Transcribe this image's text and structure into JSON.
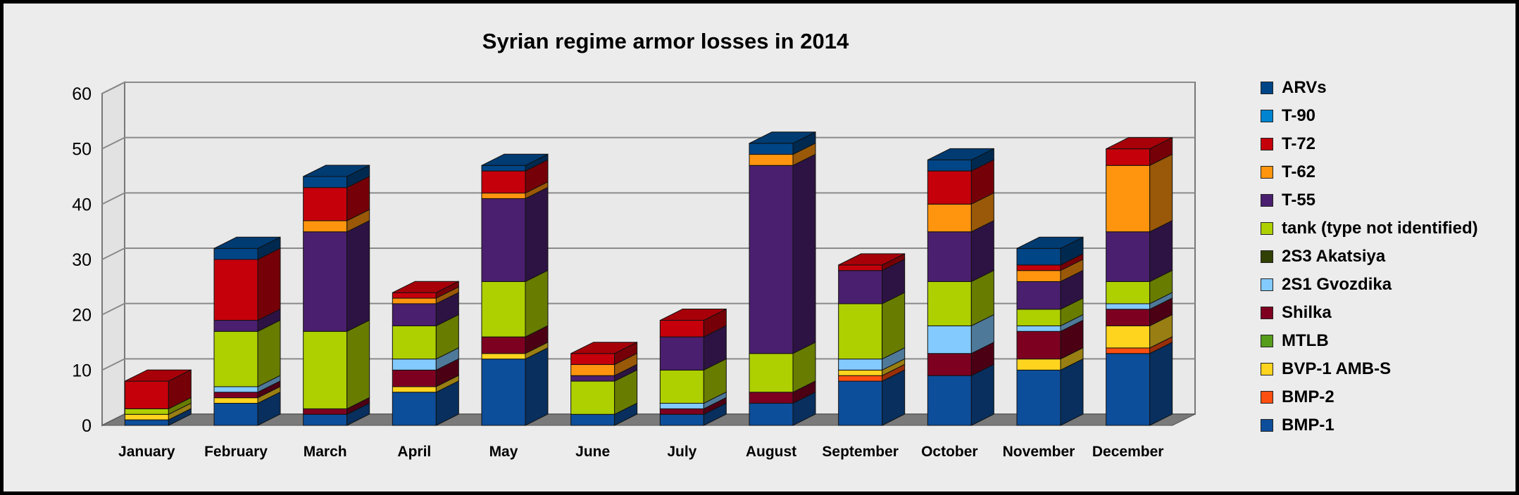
{
  "chart_data": {
    "type": "bar",
    "stacked": true,
    "three_d": true,
    "title": "Syrian regime armor losses in 2014",
    "xlabel": "",
    "ylabel": "",
    "ylim": [
      0,
      60
    ],
    "yticks": [
      "0",
      "10",
      "20",
      "30",
      "40",
      "50",
      "60"
    ],
    "grid": true,
    "legend_position": "right",
    "categories": [
      "January",
      "February",
      "March",
      "April",
      "May",
      "June",
      "July",
      "August",
      "September",
      "October",
      "November",
      "December"
    ],
    "series": [
      {
        "name": "BMP-1",
        "color": "#0d4e9b",
        "values": [
          1,
          4,
          2,
          6,
          12,
          2,
          2,
          4,
          8,
          9,
          10,
          13
        ]
      },
      {
        "name": "BMP-2",
        "color": "#ff4f10",
        "values": [
          0,
          0,
          0,
          0,
          0,
          0,
          0,
          0,
          1,
          0,
          0,
          1
        ]
      },
      {
        "name": "BVP-1 AMB-S",
        "color": "#ffd41f",
        "values": [
          1,
          1,
          0,
          1,
          1,
          0,
          0,
          0,
          1,
          0,
          2,
          4
        ]
      },
      {
        "name": "MTLB",
        "color": "#579d1c",
        "values": [
          0,
          0,
          0,
          0,
          0,
          0,
          0,
          0,
          0,
          0,
          0,
          0
        ]
      },
      {
        "name": "Shilka",
        "color": "#7e0021",
        "values": [
          0,
          1,
          1,
          3,
          3,
          0,
          1,
          2,
          0,
          4,
          5,
          3
        ]
      },
      {
        "name": "2S1 Gvozdika",
        "color": "#83caff",
        "values": [
          0,
          1,
          0,
          2,
          0,
          0,
          1,
          0,
          2,
          5,
          1,
          1
        ]
      },
      {
        "name": "2S3 Akatsiya",
        "color": "#314004",
        "values": [
          0,
          0,
          0,
          0,
          0,
          0,
          0,
          0,
          0,
          0,
          0,
          0
        ]
      },
      {
        "name": "tank (type not identified)",
        "color": "#aecf00",
        "values": [
          1,
          10,
          14,
          6,
          10,
          6,
          6,
          7,
          10,
          8,
          3,
          4
        ]
      },
      {
        "name": "T-55",
        "color": "#4b1f6f",
        "values": [
          0,
          2,
          18,
          4,
          15,
          1,
          6,
          34,
          6,
          9,
          5,
          9
        ]
      },
      {
        "name": "T-62",
        "color": "#ff950e",
        "values": [
          0,
          0,
          2,
          1,
          1,
          2,
          0,
          2,
          0,
          5,
          2,
          12
        ]
      },
      {
        "name": "T-72",
        "color": "#c5000b",
        "values": [
          5,
          11,
          6,
          1,
          4,
          2,
          3,
          0,
          1,
          6,
          1,
          3
        ]
      },
      {
        "name": "T-90",
        "color": "#0084d1",
        "values": [
          0,
          0,
          0,
          0,
          0,
          0,
          0,
          0,
          0,
          0,
          0,
          0
        ]
      },
      {
        "name": "ARVs",
        "color": "#004586",
        "values": [
          0,
          2,
          2,
          0,
          1,
          0,
          0,
          2,
          0,
          2,
          3,
          0
        ]
      }
    ],
    "legend_order": [
      "ARVs",
      "T-90",
      "T-72",
      "T-62",
      "T-55",
      "tank (type not identified)",
      "2S3 Akatsiya",
      "2S1 Gvozdika",
      "Shilka",
      "MTLB",
      "BVP-1 AMB-S",
      "BMP-2",
      "BMP-1"
    ]
  }
}
